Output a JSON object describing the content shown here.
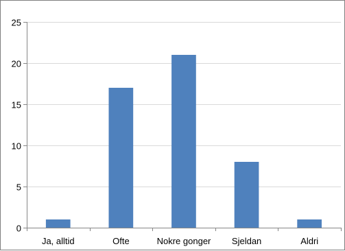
{
  "chart_data": {
    "type": "bar",
    "categories": [
      "Ja, alltid",
      "Ofte",
      "Nokre gonger",
      "Sjeldan",
      "Aldri"
    ],
    "values": [
      1,
      17,
      21,
      8,
      1
    ],
    "title": "",
    "xlabel": "",
    "ylabel": "",
    "ylim": [
      0,
      25
    ],
    "yticks": [
      0,
      5,
      10,
      15,
      20,
      25
    ],
    "grid": "horizontal",
    "legend": "none",
    "bar_color": "#4f81bd",
    "grid_color": "#d9d9d9",
    "axis_color": "#868686"
  }
}
